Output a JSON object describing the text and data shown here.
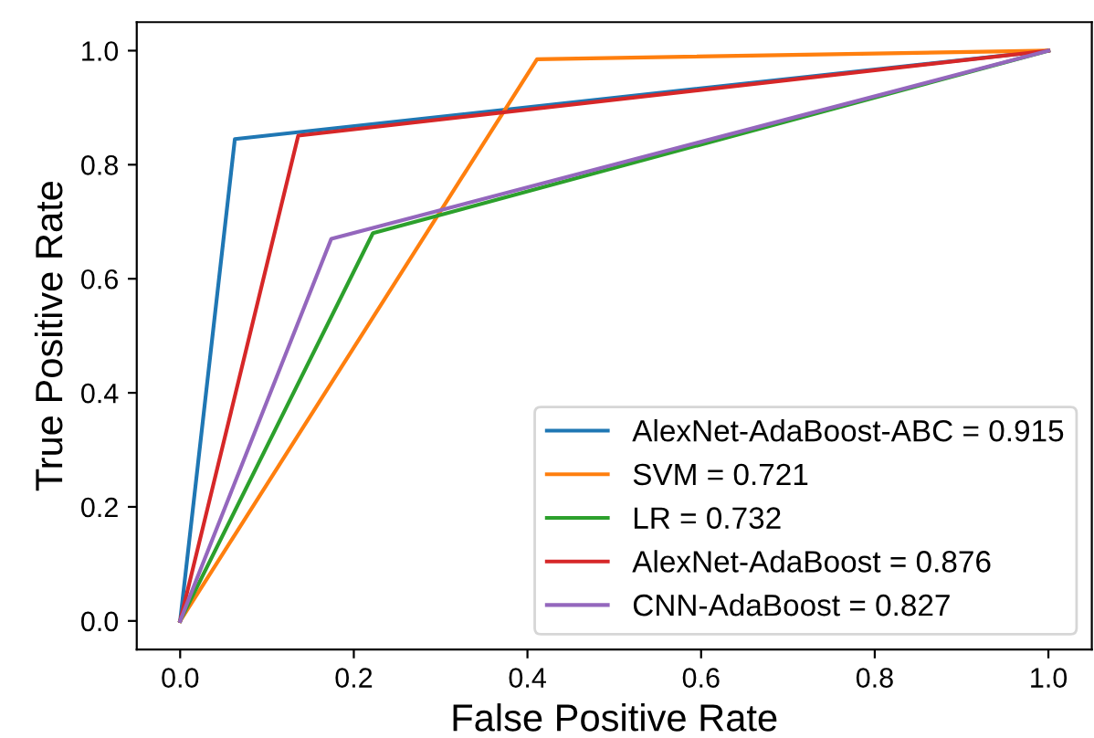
{
  "chart_data": {
    "type": "line",
    "xlabel": "False Positive Rate",
    "ylabel": "True Positive Rate",
    "xlim": [
      -0.05,
      1.05
    ],
    "ylim": [
      -0.05,
      1.05
    ],
    "xticks": [
      {
        "value": 0,
        "label": "0.0"
      },
      0.2,
      0.4,
      0.6,
      0.8,
      {
        "value": 1,
        "label": "1.0"
      }
    ],
    "yticks": [
      {
        "value": 0,
        "label": "0.0"
      },
      0.2,
      0.4,
      0.6,
      0.8,
      {
        "value": 1,
        "label": "1.0"
      }
    ],
    "grid": false,
    "legend": "bottom right",
    "marker": "none",
    "line_style": "solid",
    "series": [
      {
        "name": "AlexNet-AdaBoost-ABC = 0.915",
        "color": "#1f77b4",
        "x": [
          0,
          0.063,
          1
        ],
        "values": [
          0,
          0.845,
          1
        ]
      },
      {
        "name": "SVM = 0.721",
        "color": "#ff7f0e",
        "x": [
          0,
          0.411,
          1
        ],
        "values": [
          0,
          0.985,
          1
        ]
      },
      {
        "name": "LR = 0.732",
        "color": "#2ca02c",
        "x": [
          0,
          0.222,
          1
        ],
        "values": [
          0,
          0.68,
          1
        ]
      },
      {
        "name": "AlexNet-AdaBoost = 0.876",
        "color": "#d62728",
        "x": [
          0,
          0.136,
          1
        ],
        "values": [
          0,
          0.851,
          1
        ]
      },
      {
        "name": "CNN-AdaBoost = 0.827",
        "color": "#9467bd",
        "x": [
          0,
          0.174,
          1
        ],
        "values": [
          0,
          0.67,
          1
        ]
      }
    ]
  }
}
